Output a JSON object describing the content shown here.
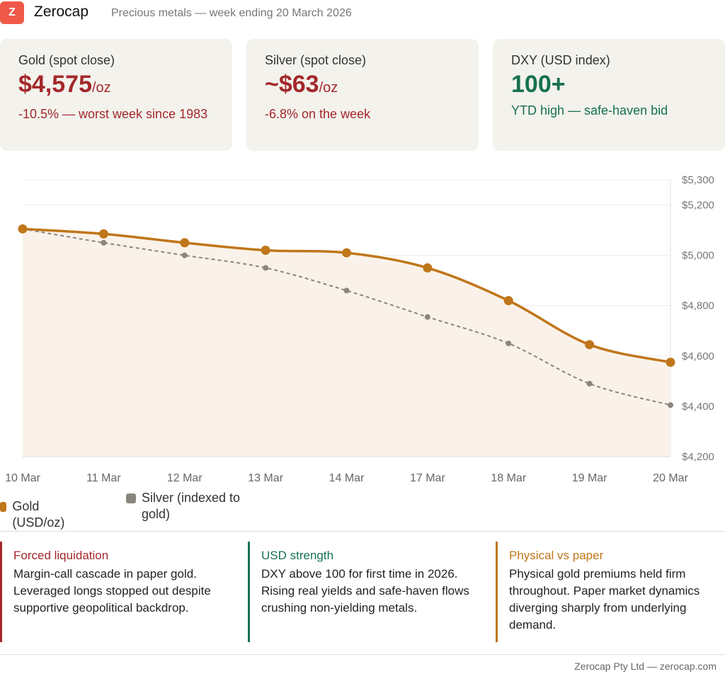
{
  "header": {
    "logo": "Z",
    "brand": "Zerocap",
    "subtitle": "Precious metals — week ending 20 March 2026"
  },
  "cards": [
    {
      "label": "Gold (spot close)",
      "value": "$4,575",
      "unit": "/oz",
      "note": "-10.5% — worst week since 1983",
      "color": "#a3282c"
    },
    {
      "label": "Silver (spot close)",
      "value": "~$63",
      "unit": "/oz",
      "note": "-6.8% on the week",
      "color": "#a3282c"
    },
    {
      "label": "DXY (USD index)",
      "value": "100+",
      "unit": "",
      "note": "YTD high — safe-haven bid",
      "color": "#16714e"
    }
  ],
  "chart_data": {
    "type": "line",
    "categories": [
      "10 Mar",
      "11 Mar",
      "12 Mar",
      "13 Mar",
      "14 Mar",
      "17 Mar",
      "18 Mar",
      "19 Mar",
      "20 Mar"
    ],
    "series": [
      {
        "name": "Gold (USD/oz)",
        "color": "#c0761a",
        "values": [
          5105,
          5085,
          5050,
          5020,
          5010,
          4950,
          4820,
          4645,
          4575
        ]
      },
      {
        "name": "Silver (indexed to gold)",
        "color": "#8a867d",
        "values": [
          5105,
          5050,
          5000,
          4950,
          4860,
          4755,
          4650,
          4490,
          4405
        ]
      }
    ],
    "ylim": [
      4200,
      5300
    ],
    "yticks": [
      "$4,200",
      "$4,400",
      "$4,600",
      "$4,800",
      "$5,000",
      "$5,200",
      "$5,300"
    ],
    "ytick_values": [
      4200,
      4400,
      4600,
      4800,
      5000,
      5200,
      5300
    ],
    "legend": "bottom-left"
  },
  "columns": [
    {
      "title": "Forced liquidation",
      "body": "Margin-call cascade in paper gold. Leveraged longs stopped out despite supportive geopolitical backdrop.",
      "color": "#a3282c"
    },
    {
      "title": "USD strength",
      "body": "DXY above 100 for first time in 2026. Rising real yields and safe-haven flows crushing non-yielding metals.",
      "color": "#16714e"
    },
    {
      "title": "Physical vs paper",
      "body": "Physical gold premiums held firm throughout. Paper market dynamics diverging sharply from underlying demand.",
      "color": "#c0761a"
    }
  ],
  "footer": "Zerocap Pty Ltd — zerocap.com"
}
